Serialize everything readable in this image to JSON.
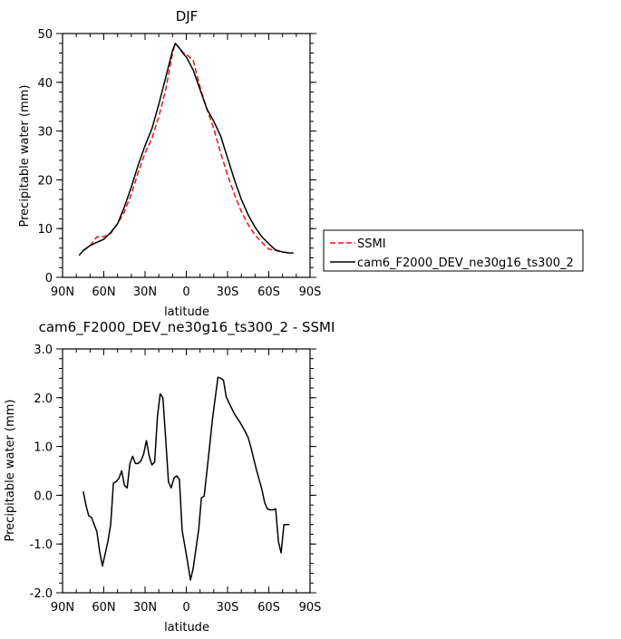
{
  "chart_data": [
    {
      "type": "line",
      "title": "DJF",
      "xlabel": "latitude",
      "ylabel": "Precipitable water (mm)",
      "xlim": [
        90,
        -90
      ],
      "ylim": [
        0,
        50
      ],
      "x_ticks": [
        90,
        60,
        30,
        0,
        -30,
        -60,
        -90
      ],
      "x_tick_labels": [
        "90N",
        "60N",
        "30N",
        "0",
        "30S",
        "60S",
        "90S"
      ],
      "y_ticks": [
        0,
        10,
        20,
        30,
        40,
        50
      ],
      "y_tick_labels": [
        "0",
        "10",
        "20",
        "30",
        "40",
        "50"
      ],
      "legend_position": "right",
      "series": [
        {
          "name": "SSMI",
          "color": "#e8141c",
          "dash": "dashed",
          "x": [
            75,
            70,
            65,
            60,
            55,
            50,
            45,
            40,
            35,
            30,
            25,
            20,
            15,
            10,
            8,
            5,
            2,
            0,
            -5,
            -10,
            -15,
            -20,
            -25,
            -30,
            -35,
            -40,
            -45,
            -50,
            -55,
            -60,
            -65,
            -70,
            -75
          ],
          "y": [
            5.5,
            6.5,
            8.3,
            8.3,
            9.0,
            11.0,
            13.5,
            17.0,
            21.5,
            25.5,
            28.5,
            33.0,
            38.5,
            46.0,
            48.0,
            47.0,
            46.0,
            45.8,
            44.5,
            39.0,
            34.5,
            30.5,
            25.5,
            21.0,
            17.0,
            13.5,
            10.8,
            8.7,
            7.2,
            5.8,
            5.5,
            5.2,
            5.0
          ]
        },
        {
          "name": "cam6_F2000_DEV_ne30g16_ts300_2",
          "color": "#000000",
          "dash": "solid",
          "x": [
            78,
            75,
            70,
            65,
            60,
            55,
            50,
            45,
            40,
            35,
            30,
            25,
            20,
            15,
            10,
            8,
            5,
            2,
            0,
            -5,
            -10,
            -15,
            -20,
            -25,
            -30,
            -35,
            -40,
            -45,
            -50,
            -55,
            -60,
            -65,
            -70,
            -75,
            -78
          ],
          "y": [
            4.5,
            5.5,
            6.5,
            7.2,
            7.8,
            9.2,
            11.0,
            14.5,
            18.5,
            23.0,
            27.0,
            30.5,
            35.5,
            41.0,
            46.5,
            48.0,
            47.0,
            45.8,
            45.2,
            42.5,
            38.5,
            34.5,
            32.0,
            29.0,
            24.5,
            20.0,
            16.0,
            12.8,
            10.3,
            8.3,
            6.9,
            5.6,
            5.2,
            5.0,
            5.0
          ]
        }
      ]
    },
    {
      "type": "line",
      "title": "cam6_F2000_DEV_ne30g16_ts300_2 - SSMI",
      "xlabel": "latitude",
      "ylabel": "Precipitable water (mm)",
      "xlim": [
        90,
        -90
      ],
      "ylim": [
        -2.0,
        3.0
      ],
      "x_ticks": [
        90,
        60,
        30,
        0,
        -30,
        -60,
        -90
      ],
      "x_tick_labels": [
        "90N",
        "60N",
        "30N",
        "0",
        "30S",
        "60S",
        "90S"
      ],
      "y_ticks": [
        -2,
        -1,
        0,
        1,
        2,
        3
      ],
      "y_tick_labels": [
        "-2.0",
        "-1.0",
        "0.0",
        "1.0",
        "2.0",
        "3.0"
      ],
      "series": [
        {
          "color": "#000000",
          "dash": "solid",
          "x": [
            75,
            73,
            71,
            69,
            67,
            65,
            63,
            61,
            59,
            57,
            55,
            53,
            51,
            49,
            47,
            45,
            43,
            41,
            39,
            37,
            35,
            33,
            31,
            29,
            27,
            25,
            23,
            21,
            19,
            17,
            15,
            13,
            11,
            9,
            7,
            5,
            3,
            1,
            -1,
            -3,
            -5,
            -7,
            -9,
            -11,
            -13,
            -15,
            -17,
            -19,
            -21,
            -23,
            -25,
            -27,
            -29,
            -31,
            -33,
            -35,
            -37,
            -39,
            -41,
            -43,
            -45,
            -47,
            -49,
            -51,
            -53,
            -55,
            -57,
            -59,
            -61,
            -63,
            -65,
            -67,
            -69,
            -71,
            -73,
            -75
          ],
          "y": [
            0.08,
            -0.2,
            -0.42,
            -0.45,
            -0.6,
            -0.75,
            -1.15,
            -1.45,
            -1.2,
            -0.95,
            -0.6,
            0.25,
            0.28,
            0.35,
            0.5,
            0.2,
            0.15,
            0.65,
            0.8,
            0.65,
            0.65,
            0.7,
            0.85,
            1.12,
            0.8,
            0.62,
            0.68,
            1.62,
            2.08,
            2.0,
            1.15,
            0.28,
            0.15,
            0.35,
            0.4,
            0.32,
            -0.72,
            -1.05,
            -1.38,
            -1.74,
            -1.5,
            -1.1,
            -0.7,
            -0.05,
            -0.02,
            0.5,
            1.02,
            1.55,
            1.98,
            2.42,
            2.4,
            2.36,
            2.02,
            1.9,
            1.78,
            1.67,
            1.58,
            1.5,
            1.4,
            1.3,
            1.18,
            0.98,
            0.75,
            0.52,
            0.32,
            0.12,
            -0.15,
            -0.28,
            -0.3,
            -0.3,
            -0.28,
            -0.95,
            -1.18,
            -0.6,
            -0.6,
            -0.6
          ]
        }
      ]
    }
  ]
}
